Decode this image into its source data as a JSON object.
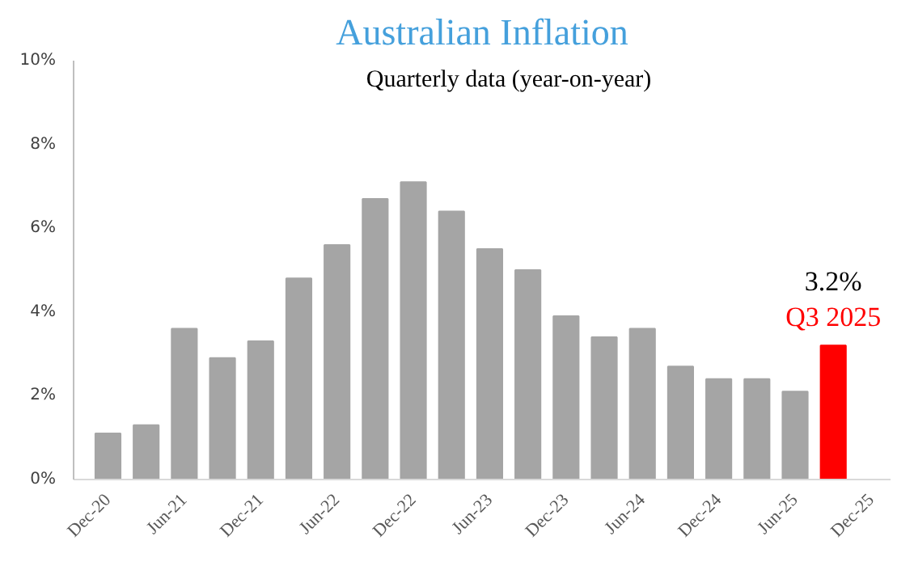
{
  "chart_data": {
    "type": "bar",
    "title": "Australian Inflation",
    "subtitle": "Quarterly data (year-on-year)",
    "categories": [
      "Dec-20",
      null,
      "Jun-21",
      null,
      "Dec-21",
      null,
      "Jun-22",
      null,
      "Dec-22",
      null,
      "Jun-23",
      null,
      "Dec-23",
      null,
      "Jun-24",
      null,
      "Dec-24",
      null,
      "Jun-25",
      null,
      "Dec-25"
    ],
    "values": [
      1.1,
      1.3,
      3.6,
      2.9,
      3.3,
      4.8,
      5.6,
      6.7,
      7.1,
      6.4,
      5.5,
      5.0,
      3.9,
      3.4,
      3.6,
      2.7,
      2.4,
      2.4,
      2.1,
      3.2,
      null
    ],
    "colors": [
      "#a5a5a5",
      "#a5a5a5",
      "#a5a5a5",
      "#a5a5a5",
      "#a5a5a5",
      "#a5a5a5",
      "#a5a5a5",
      "#a5a5a5",
      "#a5a5a5",
      "#a5a5a5",
      "#a5a5a5",
      "#a5a5a5",
      "#a5a5a5",
      "#a5a5a5",
      "#a5a5a5",
      "#a5a5a5",
      "#a5a5a5",
      "#a5a5a5",
      "#a5a5a5",
      "#ff0000",
      "#a5a5a5"
    ],
    "value_labels": [
      null,
      null,
      null,
      null,
      null,
      null,
      null,
      null,
      null,
      null,
      null,
      null,
      null,
      null,
      null,
      null,
      null,
      null,
      null,
      "3.2%",
      null
    ],
    "annotations": [
      "Q3 2025"
    ],
    "ylim": [
      0,
      10
    ],
    "yticks": [
      {
        "value": 0,
        "label": "0%"
      },
      {
        "value": 2,
        "label": "2%"
      },
      {
        "value": 4,
        "label": "4%"
      },
      {
        "value": 6,
        "label": "6%"
      },
      {
        "value": 8,
        "label": "8%"
      },
      {
        "value": 10,
        "label": "10%"
      }
    ],
    "grid": false
  }
}
